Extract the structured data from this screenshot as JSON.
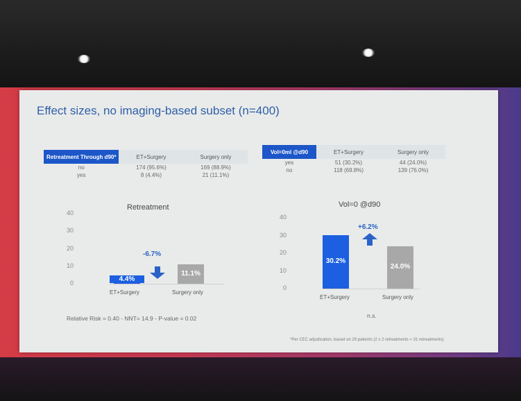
{
  "slide": {
    "title": "Effect sizes, no imaging-based subset (n=400)",
    "footnote": "*Per CEC adjudication, based on 29 patients (2 x 2 retreatments = 31 retreatments)"
  },
  "tables": [
    {
      "headers": [
        "Retreatment Through d90*",
        "ET+Surgery",
        "Surgery only"
      ],
      "rows": [
        [
          "no",
          "174 (95.6%)",
          "169 (88.9%)"
        ],
        [
          "yes",
          "8 (4.4%)",
          "21 (11.1%)"
        ]
      ]
    },
    {
      "headers": [
        "Vol=0ml @d90",
        "ET+Surgery",
        "Surgery only"
      ],
      "rows": [
        [
          "yes",
          "51 (30.2%)",
          "44 (24.0%)"
        ],
        [
          "no",
          "118 (69.8%)",
          "139 (76.0%)"
        ]
      ]
    }
  ],
  "chart_data": [
    {
      "type": "bar",
      "title": "Retreatment",
      "categories": [
        "ET+Surgery",
        "Surgery only"
      ],
      "values": [
        4.4,
        11.1
      ],
      "data_labels": [
        "4.4%",
        "11.1%"
      ],
      "bar_colors": [
        "#1c5fe0",
        "#a8a8a8"
      ],
      "ylim": [
        0,
        40
      ],
      "yticks": [
        "0",
        "10",
        "20",
        "30",
        "40"
      ],
      "change_label": "-6.7%",
      "change_direction": "down",
      "footer": "Relative Risk = 0.40 - NNT= 14.9 - P-value = 0.02"
    },
    {
      "type": "bar",
      "title": "Vol=0 @d90",
      "categories": [
        "ET+Surgery",
        "Surgery only"
      ],
      "values": [
        30.2,
        24.0
      ],
      "data_labels": [
        "30.2%",
        "24.0%"
      ],
      "bar_colors": [
        "#1c5fe0",
        "#a8a8a8"
      ],
      "ylim": [
        0,
        40
      ],
      "yticks": [
        "0",
        "10",
        "20",
        "30",
        "40"
      ],
      "change_label": "+6.2%",
      "change_direction": "up",
      "footer": "n.s."
    }
  ]
}
